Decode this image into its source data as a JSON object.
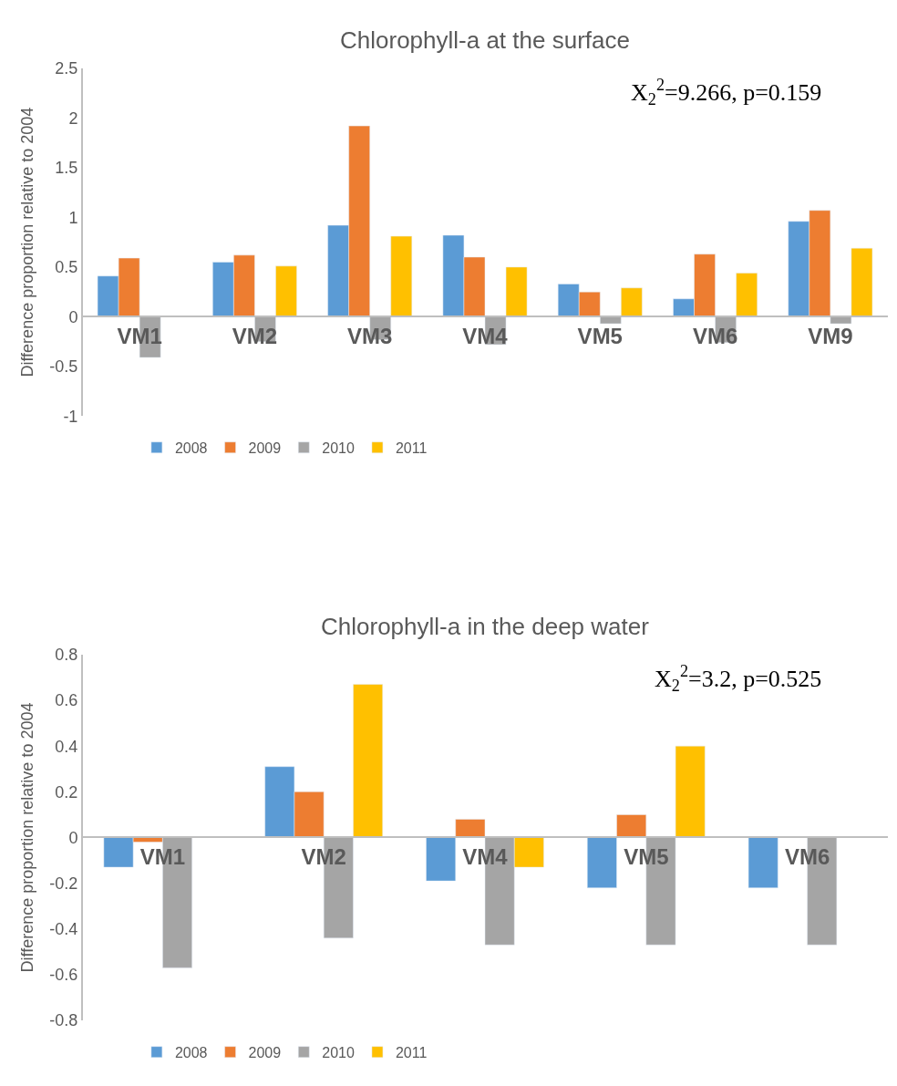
{
  "chart_data": [
    {
      "type": "bar",
      "title": "Chlorophyll-a at the surface",
      "ylabel": "Difference proportion relative to 2004",
      "categories": [
        "VM1",
        "VM2",
        "VM3",
        "VM4",
        "VM5",
        "VM6",
        "VM9"
      ],
      "series": [
        {
          "name": "2008",
          "color": "#5b9bd5",
          "values": [
            0.41,
            0.55,
            0.92,
            0.82,
            0.33,
            0.18,
            0.96
          ]
        },
        {
          "name": "2009",
          "color": "#ed7d31",
          "values": [
            0.59,
            0.62,
            1.92,
            0.6,
            0.25,
            0.63,
            1.07
          ]
        },
        {
          "name": "2010",
          "color": "#a5a5a5",
          "values": [
            -0.41,
            -0.25,
            -0.23,
            -0.28,
            -0.07,
            -0.26,
            -0.07
          ]
        },
        {
          "name": "2011",
          "color": "#ffc000",
          "values": [
            null,
            0.51,
            0.81,
            0.5,
            0.29,
            0.44,
            0.69
          ]
        }
      ],
      "ylim": [
        -1,
        2.5
      ],
      "yticks": [
        -1,
        -0.5,
        0,
        0.5,
        1,
        1.5,
        2,
        2.5
      ],
      "legend": "bottom",
      "annotations": [
        "X$_{2}$$^{2}$=9.266, p=0.159"
      ]
    },
    {
      "type": "bar",
      "title": "Chlorophyll-a in the deep water",
      "ylabel": "Difference proportion relative to 2004",
      "categories": [
        "VM1",
        "VM2",
        "VM4",
        "VM5",
        "VM6"
      ],
      "series": [
        {
          "name": "2008",
          "color": "#5b9bd5",
          "values": [
            -0.13,
            0.31,
            -0.19,
            -0.22,
            -0.22
          ]
        },
        {
          "name": "2009",
          "color": "#ed7d31",
          "values": [
            -0.02,
            0.2,
            0.08,
            0.1,
            null
          ]
        },
        {
          "name": "2010",
          "color": "#a5a5a5",
          "values": [
            -0.57,
            -0.44,
            -0.47,
            -0.47,
            -0.47
          ]
        },
        {
          "name": "2011",
          "color": "#ffc000",
          "values": [
            null,
            0.67,
            -0.13,
            0.4,
            null
          ]
        }
      ],
      "ylim": [
        -0.8,
        0.8
      ],
      "yticks": [
        -0.8,
        -0.6,
        -0.4,
        -0.2,
        0,
        0.2,
        0.4,
        0.6,
        0.8
      ],
      "legend": "bottom",
      "annotations": [
        "X$_{2}$$^{2}$=3.2, p=0.525"
      ]
    }
  ]
}
